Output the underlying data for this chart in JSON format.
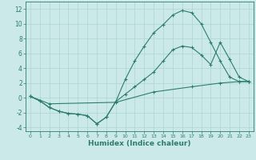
{
  "xlabel": "Humidex (Indice chaleur)",
  "x_ticks": [
    0,
    1,
    2,
    3,
    4,
    5,
    6,
    7,
    8,
    9,
    10,
    11,
    12,
    13,
    14,
    15,
    16,
    17,
    18,
    19,
    20,
    21,
    22,
    23
  ],
  "ylim": [
    -4.5,
    13
  ],
  "xlim": [
    -0.5,
    23.5
  ],
  "yticks": [
    -4,
    -2,
    0,
    2,
    4,
    6,
    8,
    10,
    12
  ],
  "bg_color": "#cce9ea",
  "grid_color": "#aad4d5",
  "line_color": "#2d7d6e",
  "line2_x": [
    0,
    1,
    2,
    3,
    4,
    5,
    6,
    7,
    8,
    9,
    10,
    11,
    12,
    13,
    14,
    15,
    16,
    17,
    18,
    19,
    20,
    21,
    22,
    23
  ],
  "line2_y": [
    0.2,
    -0.4,
    -1.3,
    -1.8,
    -2.1,
    -2.2,
    -2.4,
    -3.5,
    -2.6,
    -0.5,
    2.5,
    5.0,
    7.0,
    8.8,
    9.9,
    11.2,
    11.8,
    11.5,
    10.0,
    7.5,
    5.0,
    2.8,
    2.2,
    2.2
  ],
  "line1_x": [
    0,
    1,
    2,
    3,
    4,
    5,
    6,
    7,
    8,
    9,
    10,
    11,
    12,
    13,
    14,
    15,
    16,
    17,
    18,
    19,
    20,
    21,
    22,
    23
  ],
  "line1_y": [
    0.2,
    -0.4,
    -1.3,
    -1.8,
    -2.1,
    -2.2,
    -2.4,
    -3.5,
    -2.6,
    -0.5,
    0.5,
    1.5,
    2.5,
    3.5,
    5.0,
    6.5,
    7.0,
    6.8,
    5.8,
    4.5,
    7.5,
    5.2,
    2.8,
    2.2
  ],
  "line3_x": [
    0,
    2,
    9,
    13,
    17,
    20,
    22,
    23
  ],
  "line3_y": [
    0.2,
    -0.8,
    -0.6,
    0.8,
    1.5,
    2.0,
    2.2,
    2.2
  ]
}
